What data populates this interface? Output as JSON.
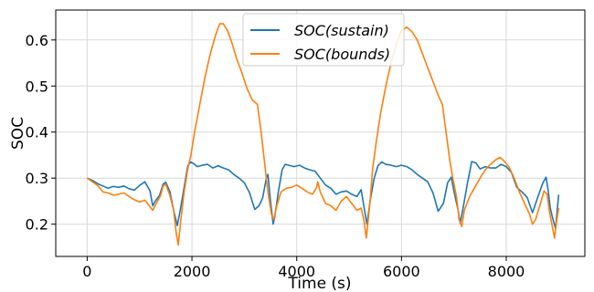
{
  "chart_data": {
    "type": "line",
    "title": "",
    "xlabel": "Time (s)",
    "ylabel": "SOC",
    "xlim": [
      -600,
      9500
    ],
    "ylim": [
      0.13,
      0.665
    ],
    "xticks": [
      0,
      2000,
      4000,
      6000,
      8000
    ],
    "xtick_labels": [
      "0",
      "2000",
      "4000",
      "6000",
      "8000"
    ],
    "yticks": [
      0.2,
      0.3,
      0.4,
      0.5,
      0.6
    ],
    "ytick_labels": [
      "0.2",
      "0.3",
      "0.4",
      "0.5",
      "0.6"
    ],
    "grid": true,
    "legend_position": "top-center",
    "series": [
      {
        "name": "SOC(sustain)",
        "legend_base": "SOC",
        "legend_arg": "(sustain)",
        "color": "#1f77b4",
        "points": [
          [
            0,
            0.3
          ],
          [
            100,
            0.295
          ],
          [
            200,
            0.288
          ],
          [
            300,
            0.283
          ],
          [
            400,
            0.278
          ],
          [
            500,
            0.282
          ],
          [
            600,
            0.28
          ],
          [
            700,
            0.283
          ],
          [
            800,
            0.277
          ],
          [
            900,
            0.274
          ],
          [
            1000,
            0.284
          ],
          [
            1100,
            0.292
          ],
          [
            1200,
            0.272
          ],
          [
            1250,
            0.24
          ],
          [
            1300,
            0.25
          ],
          [
            1380,
            0.262
          ],
          [
            1450,
            0.287
          ],
          [
            1500,
            0.291
          ],
          [
            1580,
            0.27
          ],
          [
            1650,
            0.23
          ],
          [
            1720,
            0.197
          ],
          [
            1780,
            0.232
          ],
          [
            1850,
            0.28
          ],
          [
            1920,
            0.327
          ],
          [
            1980,
            0.335
          ],
          [
            2050,
            0.33
          ],
          [
            2100,
            0.325
          ],
          [
            2200,
            0.328
          ],
          [
            2300,
            0.33
          ],
          [
            2400,
            0.322
          ],
          [
            2500,
            0.327
          ],
          [
            2600,
            0.322
          ],
          [
            2700,
            0.318
          ],
          [
            2800,
            0.308
          ],
          [
            2900,
            0.3
          ],
          [
            3000,
            0.29
          ],
          [
            3100,
            0.268
          ],
          [
            3200,
            0.232
          ],
          [
            3280,
            0.24
          ],
          [
            3350,
            0.257
          ],
          [
            3420,
            0.3
          ],
          [
            3450,
            0.308
          ],
          [
            3500,
            0.25
          ],
          [
            3550,
            0.2
          ],
          [
            3580,
            0.215
          ],
          [
            3650,
            0.27
          ],
          [
            3720,
            0.318
          ],
          [
            3780,
            0.33
          ],
          [
            3850,
            0.328
          ],
          [
            3950,
            0.325
          ],
          [
            4050,
            0.328
          ],
          [
            4150,
            0.322
          ],
          [
            4250,
            0.318
          ],
          [
            4350,
            0.315
          ],
          [
            4450,
            0.3
          ],
          [
            4550,
            0.285
          ],
          [
            4650,
            0.278
          ],
          [
            4750,
            0.265
          ],
          [
            4850,
            0.27
          ],
          [
            4950,
            0.272
          ],
          [
            5050,
            0.265
          ],
          [
            5150,
            0.26
          ],
          [
            5230,
            0.275
          ],
          [
            5280,
            0.24
          ],
          [
            5340,
            0.2
          ],
          [
            5400,
            0.25
          ],
          [
            5480,
            0.3
          ],
          [
            5550,
            0.327
          ],
          [
            5620,
            0.335
          ],
          [
            5700,
            0.33
          ],
          [
            5800,
            0.328
          ],
          [
            5900,
            0.325
          ],
          [
            6000,
            0.328
          ],
          [
            6100,
            0.325
          ],
          [
            6200,
            0.318
          ],
          [
            6300,
            0.308
          ],
          [
            6400,
            0.3
          ],
          [
            6500,
            0.292
          ],
          [
            6600,
            0.268
          ],
          [
            6700,
            0.228
          ],
          [
            6800,
            0.245
          ],
          [
            6880,
            0.29
          ],
          [
            6950,
            0.302
          ],
          [
            7000,
            0.272
          ],
          [
            7080,
            0.23
          ],
          [
            7120,
            0.202
          ],
          [
            7180,
            0.238
          ],
          [
            7260,
            0.29
          ],
          [
            7340,
            0.336
          ],
          [
            7420,
            0.333
          ],
          [
            7500,
            0.32
          ],
          [
            7600,
            0.325
          ],
          [
            7700,
            0.322
          ],
          [
            7800,
            0.322
          ],
          [
            7900,
            0.33
          ],
          [
            8000,
            0.325
          ],
          [
            8100,
            0.312
          ],
          [
            8200,
            0.28
          ],
          [
            8300,
            0.27
          ],
          [
            8400,
            0.258
          ],
          [
            8500,
            0.225
          ],
          [
            8600,
            0.258
          ],
          [
            8700,
            0.29
          ],
          [
            8760,
            0.302
          ],
          [
            8800,
            0.272
          ],
          [
            8840,
            0.235
          ],
          [
            8880,
            0.215
          ],
          [
            8940,
            0.19
          ],
          [
            9000,
            0.264
          ]
        ]
      },
      {
        "name": "SOC(bounds)",
        "legend_base": "SOC",
        "legend_arg": "(bounds)",
        "color": "#ff7f0e",
        "points": [
          [
            0,
            0.3
          ],
          [
            100,
            0.292
          ],
          [
            200,
            0.284
          ],
          [
            300,
            0.27
          ],
          [
            400,
            0.268
          ],
          [
            500,
            0.263
          ],
          [
            600,
            0.265
          ],
          [
            700,
            0.268
          ],
          [
            800,
            0.26
          ],
          [
            900,
            0.253
          ],
          [
            1000,
            0.248
          ],
          [
            1100,
            0.252
          ],
          [
            1200,
            0.238
          ],
          [
            1250,
            0.23
          ],
          [
            1300,
            0.241
          ],
          [
            1400,
            0.262
          ],
          [
            1450,
            0.283
          ],
          [
            1500,
            0.287
          ],
          [
            1580,
            0.262
          ],
          [
            1650,
            0.23
          ],
          [
            1700,
            0.18
          ],
          [
            1740,
            0.155
          ],
          [
            1780,
            0.2
          ],
          [
            1850,
            0.27
          ],
          [
            1920,
            0.32
          ],
          [
            1980,
            0.35
          ],
          [
            2050,
            0.4
          ],
          [
            2150,
            0.46
          ],
          [
            2250,
            0.52
          ],
          [
            2350,
            0.57
          ],
          [
            2450,
            0.61
          ],
          [
            2530,
            0.635
          ],
          [
            2600,
            0.635
          ],
          [
            2680,
            0.62
          ],
          [
            2760,
            0.595
          ],
          [
            2850,
            0.56
          ],
          [
            2950,
            0.53
          ],
          [
            3050,
            0.495
          ],
          [
            3150,
            0.47
          ],
          [
            3250,
            0.46
          ],
          [
            3320,
            0.4
          ],
          [
            3400,
            0.32
          ],
          [
            3450,
            0.27
          ],
          [
            3520,
            0.22
          ],
          [
            3560,
            0.21
          ],
          [
            3620,
            0.24
          ],
          [
            3700,
            0.27
          ],
          [
            3800,
            0.278
          ],
          [
            3900,
            0.28
          ],
          [
            4000,
            0.285
          ],
          [
            4100,
            0.278
          ],
          [
            4200,
            0.27
          ],
          [
            4300,
            0.265
          ],
          [
            4380,
            0.28
          ],
          [
            4400,
            0.292
          ],
          [
            4450,
            0.27
          ],
          [
            4550,
            0.245
          ],
          [
            4650,
            0.24
          ],
          [
            4750,
            0.23
          ],
          [
            4850,
            0.25
          ],
          [
            4950,
            0.26
          ],
          [
            5050,
            0.245
          ],
          [
            5150,
            0.23
          ],
          [
            5230,
            0.235
          ],
          [
            5280,
            0.21
          ],
          [
            5330,
            0.17
          ],
          [
            5400,
            0.25
          ],
          [
            5450,
            0.32
          ],
          [
            5520,
            0.38
          ],
          [
            5600,
            0.44
          ],
          [
            5700,
            0.5
          ],
          [
            5800,
            0.55
          ],
          [
            5900,
            0.59
          ],
          [
            6000,
            0.62
          ],
          [
            6100,
            0.628
          ],
          [
            6200,
            0.618
          ],
          [
            6300,
            0.6
          ],
          [
            6400,
            0.57
          ],
          [
            6500,
            0.54
          ],
          [
            6600,
            0.51
          ],
          [
            6700,
            0.48
          ],
          [
            6780,
            0.46
          ],
          [
            6850,
            0.4
          ],
          [
            6920,
            0.34
          ],
          [
            6980,
            0.3
          ],
          [
            7050,
            0.26
          ],
          [
            7100,
            0.21
          ],
          [
            7150,
            0.195
          ],
          [
            7200,
            0.23
          ],
          [
            7300,
            0.26
          ],
          [
            7400,
            0.28
          ],
          [
            7500,
            0.3
          ],
          [
            7600,
            0.318
          ],
          [
            7700,
            0.33
          ],
          [
            7800,
            0.34
          ],
          [
            7880,
            0.345
          ],
          [
            7950,
            0.338
          ],
          [
            8050,
            0.325
          ],
          [
            8150,
            0.3
          ],
          [
            8250,
            0.27
          ],
          [
            8350,
            0.245
          ],
          [
            8450,
            0.22
          ],
          [
            8500,
            0.2
          ],
          [
            8560,
            0.21
          ],
          [
            8640,
            0.24
          ],
          [
            8720,
            0.272
          ],
          [
            8780,
            0.265
          ],
          [
            8820,
            0.23
          ],
          [
            8870,
            0.2
          ],
          [
            8920,
            0.17
          ],
          [
            8960,
            0.205
          ],
          [
            9000,
            0.235
          ]
        ]
      }
    ]
  }
}
